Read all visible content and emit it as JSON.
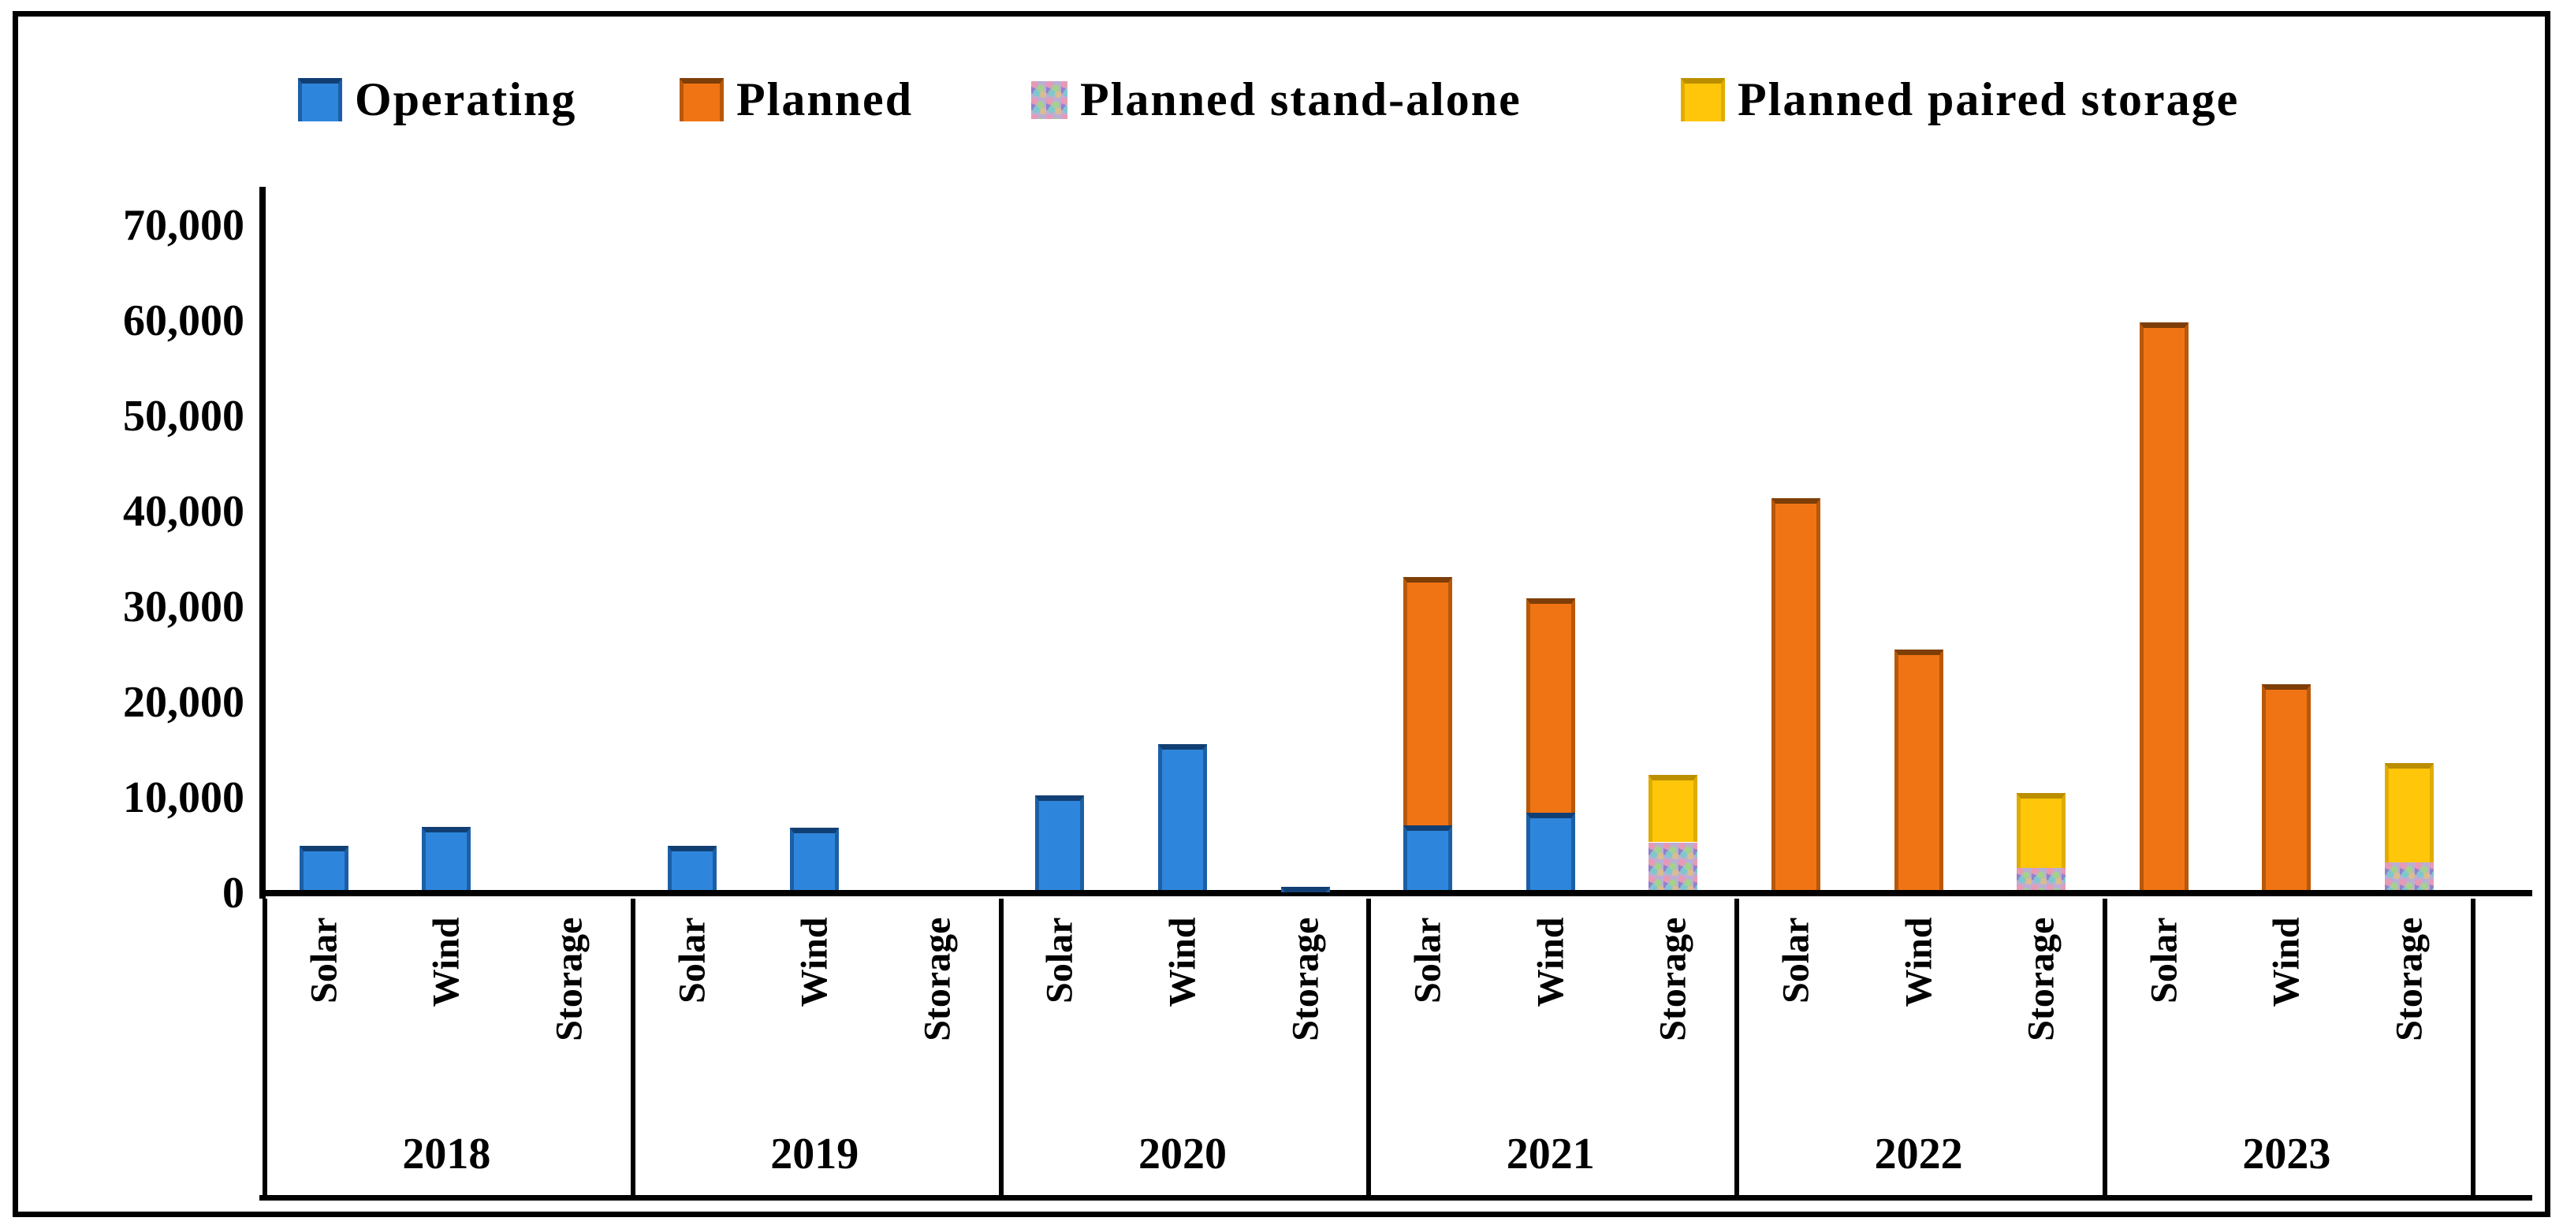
{
  "chart_data": {
    "type": "bar",
    "stacked": true,
    "title": "",
    "xlabel": "",
    "ylabel": "",
    "ylim": [
      0,
      70000
    ],
    "grid": false,
    "legend_position": "top",
    "yticks": [
      {
        "value": 0,
        "label": "0"
      },
      {
        "value": 10000,
        "label": "10,000"
      },
      {
        "value": 20000,
        "label": "20,000"
      },
      {
        "value": 30000,
        "label": "30,000"
      },
      {
        "value": 40000,
        "label": "40,000"
      },
      {
        "value": 50000,
        "label": "50,000"
      },
      {
        "value": 60000,
        "label": "60,000"
      },
      {
        "value": 70000,
        "label": "70,000"
      }
    ],
    "legend": [
      {
        "name": "Operating",
        "style": "seg-operating",
        "color": "#2E86DC"
      },
      {
        "name": "Planned",
        "style": "seg-planned",
        "color": "#F07414"
      },
      {
        "name": "Planned stand-alone",
        "style": "seg-standalone",
        "color": "confetti-gray"
      },
      {
        "name": "Planned paired storage",
        "style": "seg-paired",
        "color": "#FFC60A"
      }
    ],
    "sub_categories": [
      "Solar",
      "Wind",
      "Storage"
    ],
    "groups": [
      {
        "year": "2018",
        "bars": [
          {
            "label": "Solar",
            "segments": [
              {
                "series": "Operating",
                "value": 4600
              }
            ]
          },
          {
            "label": "Wind",
            "segments": [
              {
                "series": "Operating",
                "value": 6600
              }
            ]
          },
          {
            "label": "Storage",
            "segments": []
          }
        ]
      },
      {
        "year": "2019",
        "bars": [
          {
            "label": "Solar",
            "segments": [
              {
                "series": "Operating",
                "value": 4600
              }
            ]
          },
          {
            "label": "Wind",
            "segments": [
              {
                "series": "Operating",
                "value": 6500
              }
            ]
          },
          {
            "label": "Storage",
            "segments": []
          }
        ]
      },
      {
        "year": "2020",
        "bars": [
          {
            "label": "Solar",
            "segments": [
              {
                "series": "Operating",
                "value": 9900
              }
            ]
          },
          {
            "label": "Wind",
            "segments": [
              {
                "series": "Operating",
                "value": 15300
              }
            ]
          },
          {
            "label": "Storage",
            "segments": [
              {
                "series": "Operating",
                "value": 300
              }
            ]
          }
        ]
      },
      {
        "year": "2021",
        "bars": [
          {
            "label": "Solar",
            "segments": [
              {
                "series": "Operating",
                "value": 6800
              },
              {
                "series": "Planned",
                "value": 26000
              }
            ]
          },
          {
            "label": "Wind",
            "segments": [
              {
                "series": "Operating",
                "value": 8100
              },
              {
                "series": "Planned",
                "value": 22500
              }
            ]
          },
          {
            "label": "Storage",
            "segments": [
              {
                "series": "Planned stand-alone",
                "value": 5000
              },
              {
                "series": "Planned paired storage",
                "value": 7100
              }
            ]
          }
        ]
      },
      {
        "year": "2022",
        "bars": [
          {
            "label": "Solar",
            "segments": [
              {
                "series": "Planned",
                "value": 41100
              }
            ]
          },
          {
            "label": "Wind",
            "segments": [
              {
                "series": "Planned",
                "value": 25200
              }
            ]
          },
          {
            "label": "Storage",
            "segments": [
              {
                "series": "Planned stand-alone",
                "value": 2300
              },
              {
                "series": "Planned paired storage",
                "value": 7900
              }
            ]
          }
        ]
      },
      {
        "year": "2023",
        "bars": [
          {
            "label": "Solar",
            "segments": [
              {
                "series": "Planned",
                "value": 59500
              }
            ]
          },
          {
            "label": "Wind",
            "segments": [
              {
                "series": "Planned",
                "value": 21600
              }
            ]
          },
          {
            "label": "Storage",
            "segments": [
              {
                "series": "Planned stand-alone",
                "value": 2900
              },
              {
                "series": "Planned paired storage",
                "value": 10400
              }
            ]
          }
        ]
      }
    ]
  }
}
